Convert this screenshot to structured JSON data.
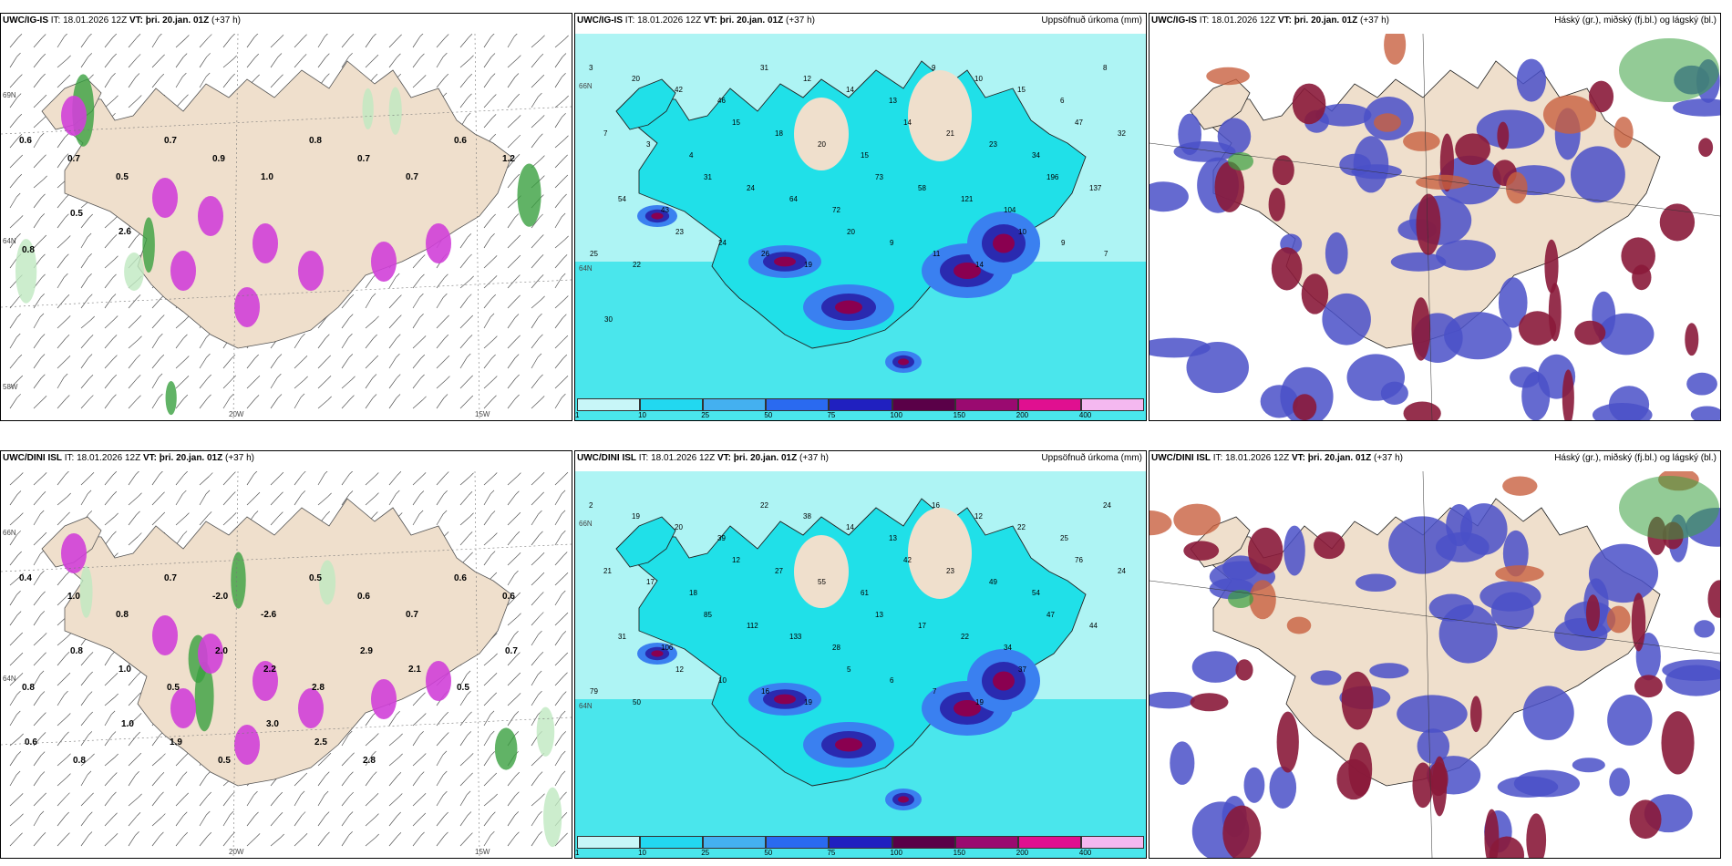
{
  "panels": [
    {
      "id": "p1",
      "model": "UWC/IG-IS",
      "it_label": "IT:",
      "it_value": "18.01.2026 12Z",
      "vt_label": "VT:",
      "vt_value": "þri. 20.jan. 01Z",
      "lead": "(+37 h)",
      "right_title": "",
      "type": "wind",
      "lat_labels": [
        "69N",
        "64N",
        "58W"
      ],
      "lon_labels": [
        "20W",
        "15W"
      ],
      "values": [
        "0.6",
        "0.7",
        "0.5",
        "0.7",
        "0.9",
        "1.0",
        "0.8",
        "0.7",
        "0.7",
        "0.6",
        "1.2",
        "0.8",
        "0.5",
        "2.6"
      ]
    },
    {
      "id": "p2",
      "model": "UWC/IG-IS",
      "it_label": "IT:",
      "it_value": "18.01.2026 12Z",
      "vt_label": "VT:",
      "vt_value": "þri. 20.jan. 01Z",
      "lead": "(+37 h)",
      "right_title": "Uppsöfnuð úrkoma (mm)",
      "type": "precip",
      "lat_labels": [
        "66N",
        "64N"
      ],
      "values": [
        "3",
        "20",
        "42",
        "46",
        "31",
        "12",
        "14",
        "13",
        "9",
        "10",
        "15",
        "6",
        "8",
        "7",
        "3",
        "4",
        "15",
        "18",
        "20",
        "15",
        "14",
        "21",
        "23",
        "34",
        "47",
        "32",
        "54",
        "43",
        "31",
        "24",
        "64",
        "72",
        "73",
        "58",
        "121",
        "104",
        "196",
        "137",
        "25",
        "22",
        "23",
        "24",
        "26",
        "19",
        "20",
        "9",
        "11",
        "14",
        "10",
        "9",
        "7",
        "30"
      ]
    },
    {
      "id": "p3",
      "model": "UWC/IG-IS",
      "it_label": "IT:",
      "it_value": "18.01.2026 12Z",
      "vt_label": "VT:",
      "vt_value": "þri. 20.jan. 01Z",
      "lead": "(+37 h)",
      "right_title": "Háský (gr.), miðský (fj.bl.) og lágský (bl.)",
      "type": "cloud"
    },
    {
      "id": "p4",
      "model": "UWC/DINI ISL",
      "it_label": "IT:",
      "it_value": "18.01.2026 12Z",
      "vt_label": "VT:",
      "vt_value": "þri. 20.jan. 01Z",
      "lead": "(+37 h)",
      "right_title": "",
      "type": "wind",
      "lat_labels": [
        "66N",
        "64N"
      ],
      "lon_labels": [
        "20W",
        "15W"
      ],
      "values": [
        "0.4",
        "1.0",
        "0.8",
        "0.7",
        "-2.0",
        "-2.6",
        "0.5",
        "0.6",
        "0.7",
        "0.6",
        "0.6",
        "0.8",
        "0.8",
        "1.0",
        "0.5",
        "2.0",
        "2.2",
        "2.8",
        "2.9",
        "2.1",
        "0.5",
        "0.7",
        "0.6",
        "0.8",
        "1.0",
        "1.9",
        "0.5",
        "3.0",
        "2.5",
        "2.8"
      ]
    },
    {
      "id": "p5",
      "model": "UWC/DINI ISL",
      "it_label": "IT:",
      "it_value": "18.01.2026 12Z",
      "vt_label": "VT:",
      "vt_value": "þri. 20.jan. 01Z",
      "lead": "(+37 h)",
      "right_title": "Uppsöfnuð úrkoma (mm)",
      "type": "precip",
      "lat_labels": [
        "66N",
        "64N"
      ],
      "values": [
        "2",
        "19",
        "20",
        "39",
        "22",
        "38",
        "14",
        "13",
        "16",
        "12",
        "22",
        "25",
        "24",
        "21",
        "17",
        "18",
        "12",
        "27",
        "55",
        "61",
        "42",
        "23",
        "49",
        "54",
        "76",
        "24",
        "31",
        "106",
        "85",
        "112",
        "133",
        "28",
        "13",
        "17",
        "22",
        "34",
        "47",
        "44",
        "79",
        "50",
        "12",
        "10",
        "16",
        "19",
        "5",
        "6",
        "7",
        "19",
        "37"
      ]
    },
    {
      "id": "p6",
      "model": "UWC/DINI ISL",
      "it_label": "IT:",
      "it_value": "18.01.2026 12Z",
      "vt_label": "VT:",
      "vt_value": "þri. 20.jan. 01Z",
      "lead": "(+37 h)",
      "right_title": "Háský (gr.), miðský (fj.bl.) og lágský (bl.)",
      "type": "cloud"
    }
  ],
  "precip_legend": {
    "labels": [
      "1",
      "10",
      "25",
      "50",
      "75",
      "100",
      "150",
      "200",
      "400"
    ],
    "colors": [
      "#c8f6f8",
      "#22d8f0",
      "#44b0f0",
      "#2a6af0",
      "#2020c0",
      "#5a0048",
      "#9a0a70",
      "#e01090",
      "#f4b8f0"
    ]
  },
  "colors": {
    "land": "#efdfcc",
    "sea_precip": "#aef4f4",
    "cyan": "#20e0e8",
    "blue": "#3a80f0",
    "navy": "#2a2ab0",
    "purple": "#8a0050",
    "magenta": "#d040d8",
    "green": "#3aa040",
    "lightgreen": "#bfe8c0",
    "cloud_blue": "#4a50c8",
    "cloud_red": "#8a1a3a",
    "cloud_orange": "#c86040"
  }
}
